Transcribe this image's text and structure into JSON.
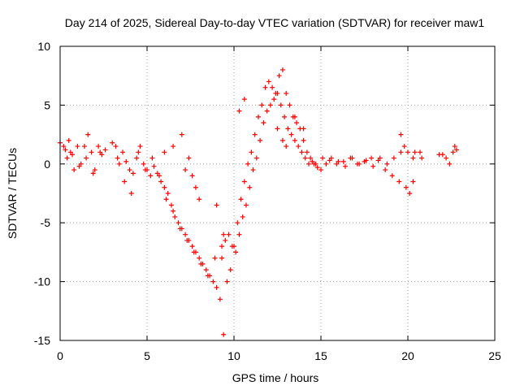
{
  "chart_data": {
    "type": "scatter",
    "title": "Day 214 of 2025, Sidereal Day-to-day VTEC variation (SDTVAR) for receiver maw1",
    "xlabel": "GPS time / hours",
    "ylabel": "SDTVAR / TECUs",
    "xlim": [
      0,
      25
    ],
    "ylim": [
      -15,
      10
    ],
    "xticks": [
      0,
      5,
      10,
      15,
      20,
      25
    ],
    "xtick_labels": [
      "0",
      "5",
      "10",
      "15",
      "20",
      "25"
    ],
    "yticks": [
      -15,
      -10,
      -5,
      0,
      5,
      10
    ],
    "ytick_labels": [
      "-15",
      "-10",
      "-5",
      "0",
      "5",
      "10"
    ],
    "grid": true,
    "legend": "none",
    "marker": "+",
    "series": [
      {
        "name": "maw1 SDTVAR",
        "color": "#ff0000",
        "x": [
          0.0,
          0.2,
          0.4,
          0.5,
          0.6,
          0.8,
          1.0,
          1.2,
          1.4,
          1.6,
          1.8,
          2.0,
          2.2,
          2.4,
          2.6,
          3.0,
          3.2,
          3.4,
          3.6,
          3.8,
          4.0,
          4.2,
          4.4,
          4.6,
          4.8,
          5.0,
          5.2,
          5.4,
          5.6,
          5.8,
          6.0,
          6.2,
          6.4,
          6.6,
          6.8,
          7.0,
          7.2,
          7.4,
          7.6,
          7.8,
          8.0,
          8.2,
          8.4,
          8.6,
          8.8,
          9.0,
          9.2,
          9.4,
          9.6,
          9.8,
          10.0,
          10.2,
          10.4,
          10.6,
          10.8,
          11.0,
          11.2,
          11.4,
          11.6,
          11.8,
          12.0,
          12.2,
          12.4,
          12.6,
          12.8,
          13.0,
          13.2,
          13.4,
          13.6,
          13.8,
          14.0,
          14.2,
          14.4,
          14.6,
          14.8,
          15.0,
          15.3,
          15.6,
          16.0,
          16.4,
          16.8,
          17.2,
          17.6,
          18.0,
          18.4,
          18.8,
          19.2,
          19.6,
          20.0,
          20.4,
          20.8,
          21.8,
          22.2,
          22.6,
          22.8,
          0.3,
          0.7,
          1.1,
          1.5,
          1.9,
          2.3,
          3.3,
          3.7,
          4.1,
          4.5,
          4.9,
          5.3,
          5.7,
          6.1,
          6.5,
          6.9,
          7.3,
          7.7,
          8.1,
          8.5,
          8.9,
          9.3,
          9.5,
          9.7,
          9.9,
          10.1,
          10.3,
          10.5,
          10.7,
          10.9,
          11.1,
          11.3,
          11.5,
          11.7,
          11.9,
          12.1,
          12.3,
          12.5,
          12.7,
          12.9,
          13.1,
          13.3,
          13.5,
          13.7,
          13.9,
          14.1,
          14.3,
          14.5,
          14.7,
          15.1,
          15.5,
          15.9,
          16.3,
          16.7,
          17.1,
          17.5,
          17.9,
          18.3,
          18.7,
          19.1,
          19.5,
          19.9,
          20.3,
          20.7,
          22.0,
          22.4,
          22.7,
          6.0,
          6.5,
          7.0,
          7.2,
          7.4,
          7.6,
          7.8,
          8.0,
          9.0,
          9.3,
          9.4,
          10.3,
          10.6,
          12.5,
          12.8,
          13.0,
          13.5,
          14.0,
          19.6,
          19.8,
          20.1,
          20.3
        ],
        "y": [
          1.8,
          1.5,
          0.5,
          2.0,
          1.0,
          -0.5,
          1.5,
          0.0,
          1.5,
          2.5,
          1.0,
          -0.5,
          1.5,
          0.8,
          1.2,
          1.8,
          1.5,
          0.0,
          1.0,
          0.2,
          -0.5,
          -0.8,
          0.5,
          1.5,
          0.0,
          -0.5,
          -1.0,
          -0.2,
          -0.8,
          -1.5,
          -2.0,
          -2.5,
          -3.5,
          -4.5,
          -5.0,
          -5.5,
          -6.0,
          -6.5,
          -7.0,
          -7.5,
          -8.0,
          -8.5,
          -9.0,
          -9.5,
          -10.0,
          -10.5,
          -11.5,
          -14.5,
          -10.0,
          -9.0,
          -7.0,
          -5.0,
          -3.0,
          -1.5,
          0.0,
          1.0,
          2.5,
          4.0,
          5.0,
          6.5,
          7.0,
          6.5,
          6.0,
          7.5,
          8.0,
          6.0,
          5.0,
          4.0,
          3.5,
          3.0,
          2.0,
          1.0,
          0.5,
          0.0,
          -0.3,
          -0.5,
          0.0,
          0.5,
          0.2,
          -0.2,
          0.5,
          0.0,
          0.3,
          -0.2,
          0.5,
          0.0,
          0.5,
          1.0,
          1.0,
          1.0,
          0.5,
          0.8,
          0.5,
          1.0,
          1.2,
          1.2,
          0.8,
          -0.2,
          0.5,
          -0.8,
          1.0,
          0.5,
          -1.5,
          -2.5,
          1.0,
          -0.5,
          0.5,
          -1.0,
          -3.0,
          -4.0,
          -5.5,
          -6.5,
          -7.5,
          -8.5,
          -9.5,
          -8.0,
          -7.0,
          -6.5,
          -6.0,
          -7.0,
          -7.5,
          -6.0,
          -4.5,
          -3.5,
          -2.0,
          -0.5,
          0.5,
          2.0,
          3.5,
          4.5,
          5.0,
          5.5,
          6.0,
          5.0,
          4.0,
          3.0,
          2.5,
          2.0,
          1.5,
          1.0,
          0.5,
          0.0,
          0.2,
          0.0,
          0.5,
          0.3,
          0.0,
          0.2,
          0.5,
          0.0,
          0.2,
          0.5,
          0.3,
          -0.5,
          -1.0,
          -1.5,
          -2.0,
          0.5,
          1.0,
          0.8,
          0.0,
          1.5,
          1.0,
          1.5,
          2.5,
          -0.5,
          0.5,
          -1.0,
          -2.0,
          -3.0,
          -3.5,
          -8.0,
          -6.0,
          4.5,
          5.5,
          3.0,
          2.0,
          1.5,
          4.0,
          3.0,
          2.5,
          1.5,
          -2.5,
          -1.5
        ]
      }
    ]
  }
}
